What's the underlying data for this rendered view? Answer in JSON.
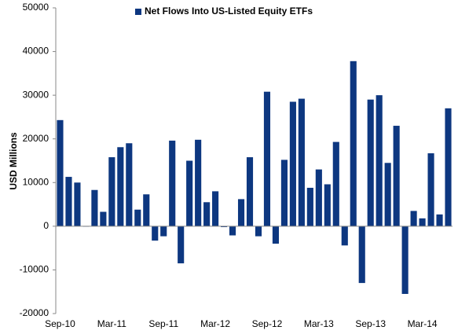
{
  "chart_data": {
    "type": "bar",
    "series": [
      {
        "name": "Net Flows Into US-Listed Equity ETFs",
        "color": "#0d3780",
        "values": [
          24300,
          11300,
          10000,
          -100,
          8300,
          3300,
          15800,
          18100,
          19000,
          3800,
          7300,
          -3300,
          -2300,
          19600,
          -8500,
          15000,
          19800,
          5500,
          8000,
          -200,
          -2100,
          6200,
          15800,
          -2300,
          30800,
          -4000,
          15200,
          28500,
          29200,
          8800,
          13000,
          9600,
          19300,
          -4400,
          37800,
          -13000,
          29000,
          30000,
          14500,
          23000,
          -15500,
          3500,
          1800,
          16700,
          2700,
          27000
        ]
      }
    ],
    "categories": [
      "Sep-10",
      null,
      null,
      null,
      null,
      null,
      "Mar-11",
      null,
      null,
      null,
      null,
      null,
      "Sep-11",
      null,
      null,
      null,
      null,
      null,
      "Mar-12",
      null,
      null,
      null,
      null,
      null,
      "Sep-12",
      null,
      null,
      null,
      null,
      null,
      "Mar-13",
      null,
      null,
      null,
      null,
      null,
      "Sep-13",
      null,
      null,
      null,
      null,
      null,
      "Mar-14",
      null,
      null,
      null
    ],
    "ylabel": "USD Millions",
    "ylim": [
      -20000,
      50000
    ],
    "yticks": [
      -20000,
      -10000,
      0,
      10000,
      20000,
      30000,
      40000,
      50000
    ],
    "grid": false,
    "legend": "top"
  }
}
